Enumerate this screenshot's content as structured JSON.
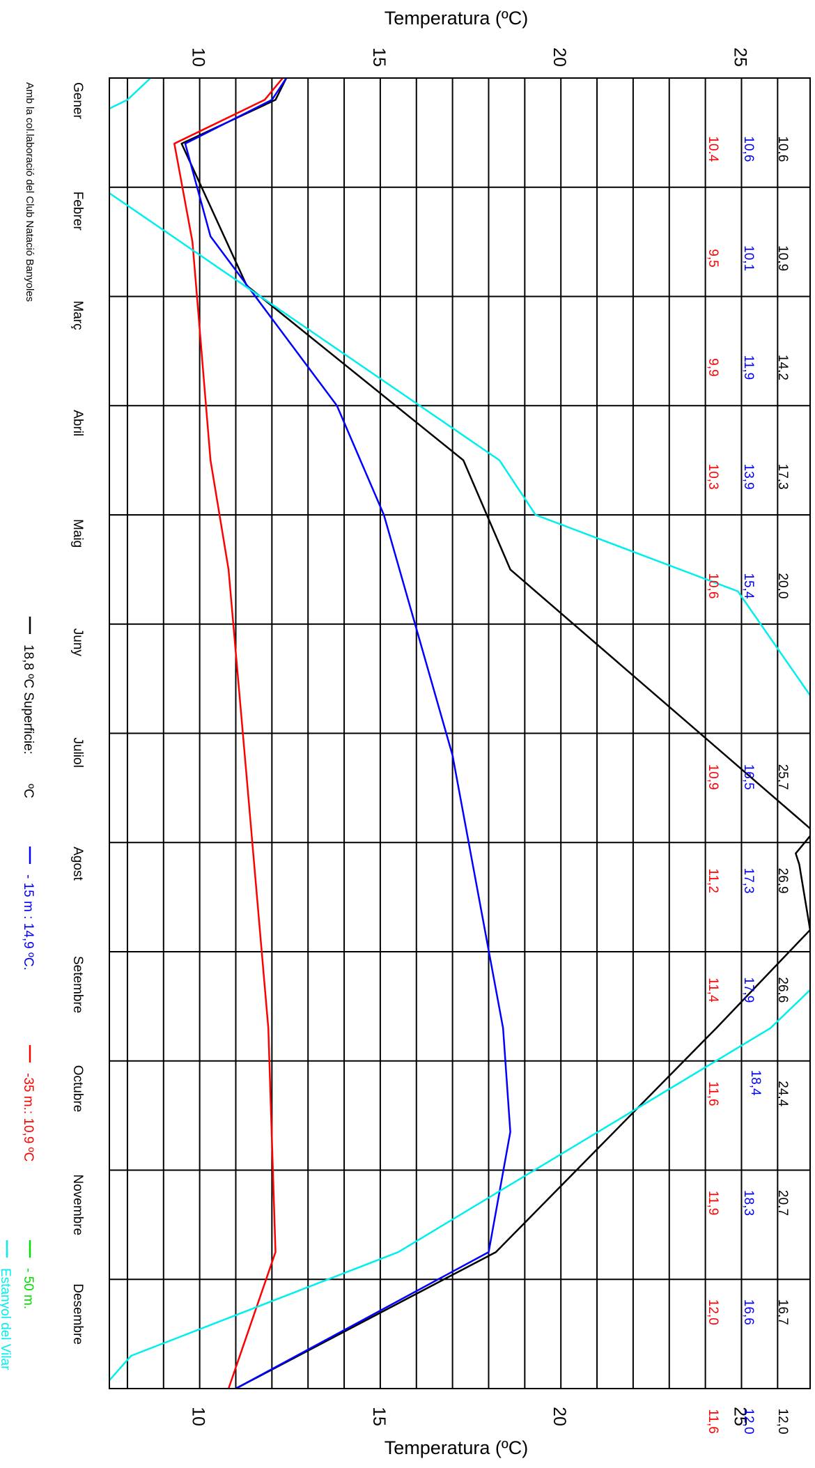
{
  "chart_data": {
    "type": "line",
    "orientation": "rotated-90-clockwise",
    "axis_title": "Temperatura (ºC)",
    "axis_ticks": [
      10,
      15,
      20,
      25
    ],
    "temperature_range": [
      7.5,
      26.9
    ],
    "grid": true,
    "months": [
      "Gener",
      "Febrer",
      "Març",
      "Abril",
      "Maig",
      "Juny",
      "Juliol",
      "Agost",
      "Setembre",
      "Octubre",
      "Novembre",
      "Desembre"
    ],
    "month_axis_range": [
      -0.5,
      11.5
    ],
    "series": [
      {
        "name": "18,8 ºC Superficie:",
        "legend_unit": "ºC",
        "color": "#000000",
        "x": [
          -0.5,
          -0.3,
          0.1,
          1.4,
          3.0,
          4.0,
          6.4,
          6.6,
          6.7,
          7.3,
          8.2,
          10.25,
          11.5
        ],
        "y": [
          12.4,
          12.1,
          9.5,
          11.3,
          17.3,
          18.6,
          27.0,
          26.5,
          26.6,
          26.9,
          24.3,
          18.2,
          11.0
        ],
        "labels": [
          "10,6",
          "10,9",
          "14,2",
          "17,3",
          "20,0",
          "25,7",
          "26,9",
          "26,6",
          "24,4",
          "20,7",
          "16,7",
          "12,0"
        ]
      },
      {
        "name": "- 15 m : 14,9 ºC.",
        "color": "#0000ff",
        "x": [
          -0.5,
          -0.3,
          0.1,
          0.95,
          2.5,
          3.5,
          5.7,
          8.2,
          9.15,
          10.25,
          11.5
        ],
        "y": [
          12.4,
          12.0,
          9.6,
          10.3,
          13.8,
          15.1,
          17.0,
          18.4,
          18.6,
          18.0,
          11.0
        ],
        "labels": [
          "10,6",
          "10,1",
          "11,9",
          "13,9",
          "15,4",
          "16,5",
          "17,3",
          "17,9",
          "18,4",
          "18,3",
          "16,6",
          "12,0"
        ]
      },
      {
        "name": "-35 m.: 10,9 ºC",
        "color": "#ff0000",
        "x": [
          -0.5,
          -0.3,
          0.1,
          1.0,
          3.0,
          4.0,
          5.9,
          8.2,
          10.25,
          11.5
        ],
        "y": [
          12.3,
          11.8,
          9.3,
          9.8,
          10.3,
          10.8,
          11.3,
          11.9,
          12.1,
          10.8
        ],
        "labels": [
          "10.4",
          "9,5",
          "9,9",
          "10,3",
          "10,6",
          "10,9",
          "11,2",
          "11,4",
          "11,6",
          "11,9",
          "12,0",
          "11,6"
        ]
      },
      {
        "name": "- 50 m.",
        "color": "#00dd00",
        "x": [],
        "y": [],
        "labels": []
      },
      {
        "name": "Estanyol del Vilar",
        "color": "#00eeee",
        "x": [
          -0.55,
          -0.3,
          0.1,
          3.0,
          3.5,
          4.2,
          5.2,
          7.5,
          8.2,
          10.25,
          11.2,
          11.5
        ],
        "y": [
          8.8,
          8.0,
          5.5,
          18.3,
          19.3,
          24.9,
          27.0,
          28.0,
          25.8,
          15.5,
          8.1,
          7.3
        ],
        "labels": []
      }
    ],
    "credit": "Amb la col.laboració del Club Natació Banyoles"
  }
}
